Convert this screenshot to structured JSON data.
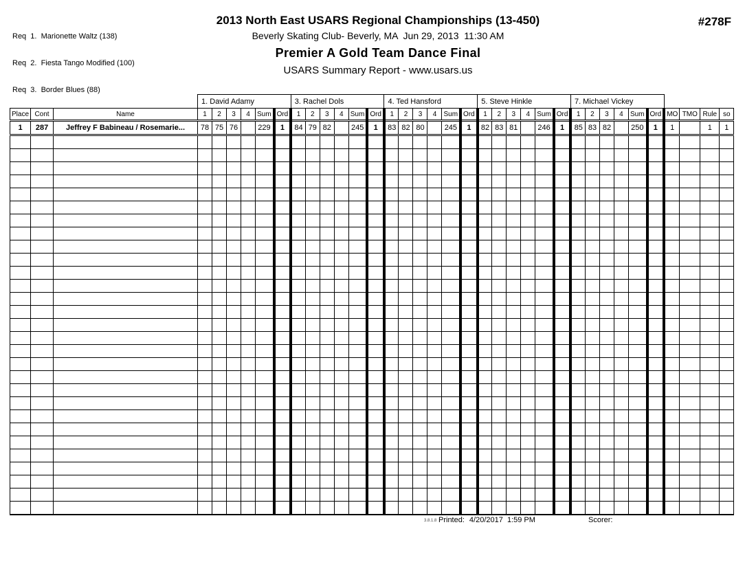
{
  "page": {
    "report_number": "#278F"
  },
  "requirements": {
    "lines": [
      "Req  1.  Marionette Waltz (138)",
      "Req  2.  Fiesta Tango Modified (100)",
      "Req  3.  Border Blues (88)"
    ]
  },
  "header": {
    "title": "2013 North East USARS Regional Championships (13-450)",
    "venue_date": "Beverly Skating Club- Beverly, MA  Jun 29, 2013  11:30 AM",
    "event": "Premier A Gold Team Dance Final",
    "report_type": "USARS Summary Report - www.usars.us"
  },
  "table": {
    "left_headers": [
      "Place",
      "Cont",
      "Name"
    ],
    "score_headers": [
      "1",
      "2",
      "3",
      "4",
      "Sum",
      "Ord"
    ],
    "right_headers": [
      "MO",
      "TMO",
      "Rule",
      "so"
    ],
    "judges": [
      {
        "label": "1.  David Adamy"
      },
      {
        "label": "3.  Rachel Dols"
      },
      {
        "label": "4.  Ted Hansford"
      },
      {
        "label": "5.  Steve Hinkle"
      },
      {
        "label": "7.  Michael Vickey"
      }
    ],
    "rows": [
      {
        "place": "1",
        "cont": "287",
        "name": "Jeffrey F Babineau / Rosemarie...",
        "scores": [
          {
            "s1": "78",
            "s2": "75",
            "s3": "76",
            "s4": "",
            "sum": "229",
            "ord": "1"
          },
          {
            "s1": "84",
            "s2": "79",
            "s3": "82",
            "s4": "",
            "sum": "245",
            "ord": "1"
          },
          {
            "s1": "83",
            "s2": "82",
            "s3": "80",
            "s4": "",
            "sum": "245",
            "ord": "1"
          },
          {
            "s1": "82",
            "s2": "83",
            "s3": "81",
            "s4": "",
            "sum": "246",
            "ord": "1"
          },
          {
            "s1": "85",
            "s2": "83",
            "s3": "82",
            "s4": "",
            "sum": "250",
            "ord": "1"
          }
        ],
        "mo": "1",
        "tmo": "",
        "rule": "1",
        "so": "1"
      }
    ],
    "empty_row_count": 29
  },
  "footer": {
    "version": "3.8.1.8",
    "printed_label": "Printed:",
    "printed_value": "4/20/2017  1:59 PM",
    "scorer_label": "Scorer:"
  }
}
